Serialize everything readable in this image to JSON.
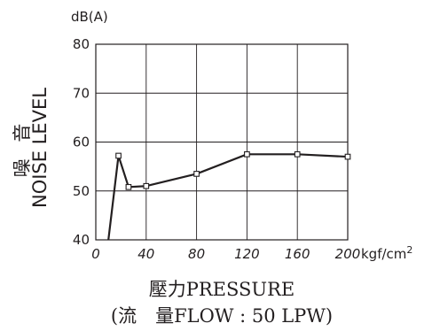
{
  "chart_data": {
    "type": "line",
    "y_unit": "dB(A)",
    "x_unit": "kgf/cm",
    "x_unit_superscript": "2",
    "ylabel": "噪 音 NOISE LEVEL",
    "ylabel_cjk": "噪 音",
    "ylabel_en": "NOISE LEVEL",
    "xlabel_line1": "壓力PRESSURE",
    "xlabel_line2": "(流　量FLOW : 50 LPW)",
    "xlim": [
      0,
      200
    ],
    "ylim": [
      40,
      80
    ],
    "x_ticks": [
      0,
      40,
      80,
      120,
      160,
      200
    ],
    "y_ticks": [
      40,
      50,
      60,
      70,
      80
    ],
    "grid": true,
    "series": [
      {
        "x": [
          10,
          18,
          26,
          40,
          80,
          120,
          160,
          200
        ],
        "y": [
          40,
          57.2,
          50.8,
          51,
          53.5,
          57.5,
          57.5,
          57
        ],
        "markers": [
          false,
          true,
          true,
          true,
          true,
          true,
          true,
          true
        ]
      }
    ]
  }
}
